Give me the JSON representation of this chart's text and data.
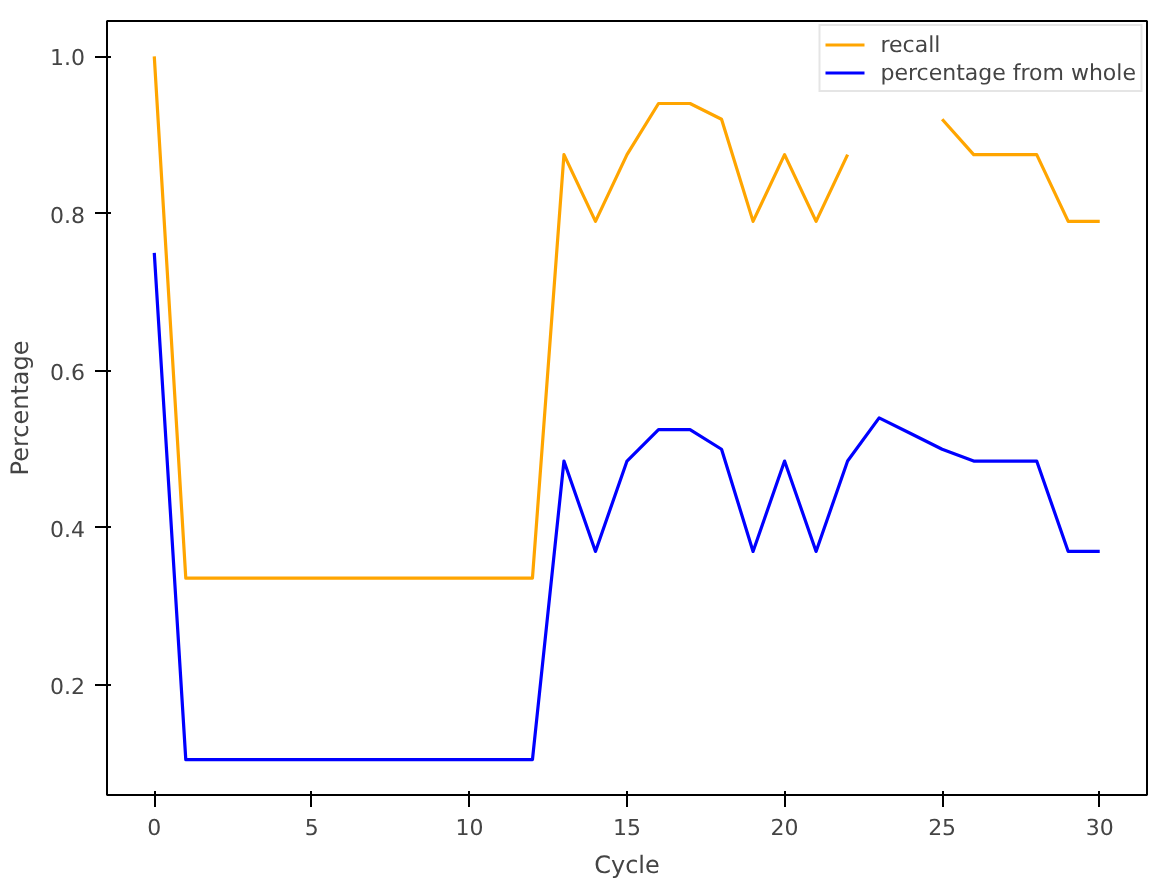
{
  "chart_data": {
    "type": "line",
    "xlabel": "Cycle",
    "ylabel": "Percentage",
    "x": [
      0,
      1,
      2,
      3,
      4,
      5,
      6,
      7,
      8,
      9,
      10,
      11,
      12,
      13,
      14,
      15,
      16,
      17,
      18,
      19,
      20,
      21,
      22,
      23,
      24,
      25,
      26,
      27,
      28,
      29,
      30
    ],
    "series": [
      {
        "name": "recall",
        "color": "#ffa500",
        "values": [
          1.0,
          0.336,
          0.336,
          0.336,
          0.336,
          0.336,
          0.336,
          0.336,
          0.336,
          0.336,
          0.336,
          0.336,
          0.336,
          0.875,
          0.79,
          0.875,
          0.94,
          0.94,
          0.92,
          0.79,
          0.875,
          0.79,
          0.875,
          null,
          null,
          0.92,
          0.875,
          0.875,
          0.875,
          0.79,
          0.79
        ]
      },
      {
        "name": "percentage from whole",
        "color": "#0000ff",
        "values": [
          0.75,
          0.105,
          0.105,
          0.105,
          0.105,
          0.105,
          0.105,
          0.105,
          0.105,
          0.105,
          0.105,
          0.105,
          0.105,
          0.485,
          0.37,
          0.485,
          0.525,
          0.525,
          0.5,
          0.37,
          0.485,
          0.37,
          0.485,
          0.54,
          0.52,
          0.5,
          0.485,
          0.485,
          0.485,
          0.37,
          0.37
        ]
      }
    ],
    "xlim": [
      -1.5,
      31.5
    ],
    "ylim": [
      0.06,
      1.045
    ],
    "xticks": [
      0,
      5,
      10,
      15,
      20,
      25,
      30
    ],
    "yticks": [
      0.2,
      0.4,
      0.6,
      0.8,
      {
        "value": 1,
        "label": "1.0"
      }
    ],
    "legend": "top right",
    "grid": false,
    "marker": "none",
    "line_style": "solid"
  }
}
